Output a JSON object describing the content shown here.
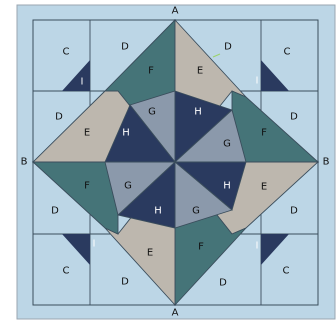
{
  "edge_labels": {
    "top": "A",
    "bottom": "A",
    "left": "B",
    "right": "B"
  },
  "colors": {
    "light_blue": "#bcd6e6",
    "tan": "#bdb7ae",
    "teal": "#457478",
    "navy": "#2a3a5f",
    "steel": "#8b99ab",
    "line": "#3a4d5c",
    "border": "#9aa6b0"
  },
  "pieces": {
    "C": "C",
    "D": "D",
    "E": "E",
    "F": "F",
    "G": "G",
    "H": "H",
    "I": "I"
  }
}
